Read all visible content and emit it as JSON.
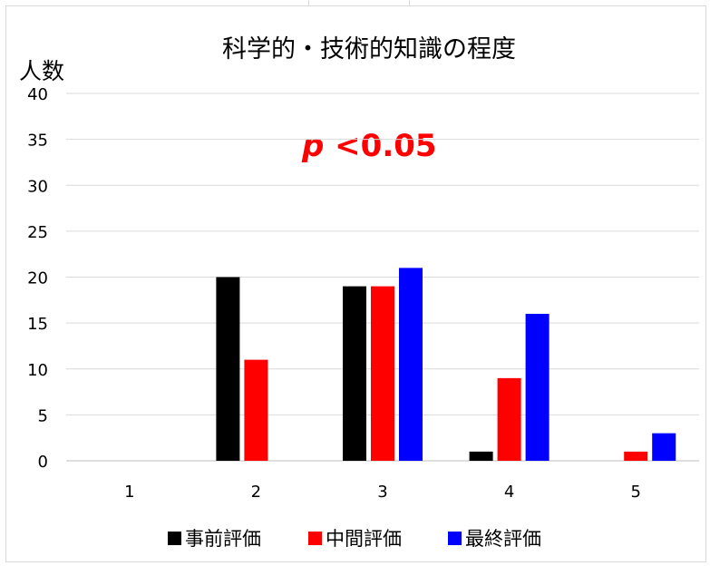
{
  "chart_data": {
    "type": "bar",
    "title": "科学的・技術的知識の程度",
    "ylabel": "人数",
    "xlabel": "",
    "annotation": {
      "italic": "p",
      "rest": " <0.05",
      "color": "#ff0000"
    },
    "categories": [
      "1",
      "2",
      "3",
      "4",
      "5"
    ],
    "ylim": [
      0,
      40
    ],
    "yticks": [
      0,
      5,
      10,
      15,
      20,
      25,
      30,
      35,
      40
    ],
    "grid": true,
    "legend_position": "bottom",
    "series": [
      {
        "name": "事前評価",
        "color": "#000000",
        "values": [
          0,
          20,
          19,
          1,
          0
        ]
      },
      {
        "name": "中間評価",
        "color": "#ff0000",
        "values": [
          0,
          11,
          19,
          9,
          1
        ]
      },
      {
        "name": "最終評価",
        "color": "#0000ff",
        "values": [
          0,
          0,
          21,
          16,
          3
        ]
      }
    ]
  }
}
